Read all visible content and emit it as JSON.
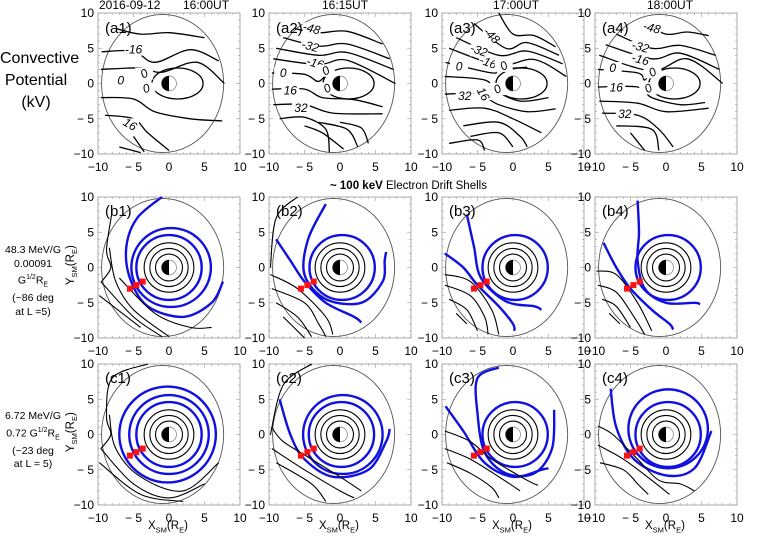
{
  "figure": {
    "date": "2016-09-12",
    "times": [
      "16:00UT",
      "16:15UT",
      "17:00UT",
      "18:00UT"
    ],
    "row_a_label": [
      "Convective",
      "Potential",
      "(kV)"
    ],
    "drift_title_bold": "~ 100 keV",
    "drift_title_rest": "Electron Drift Shells",
    "row_b_label": {
      "line1": "48.3 MeV/G",
      "line2_value": "0.00091 G",
      "line2_sup": "1/2",
      "line2_unit": "R",
      "line2_sub": "E",
      "line3": "(~86 deg",
      "line4": "at L =5)"
    },
    "row_c_label": {
      "line1": "6.72 MeV/G",
      "line2_value": "0.72 G",
      "line2_sup": "1/2",
      "line2_unit": "R",
      "line2_sub": "E",
      "line3": "(~23 deg",
      "line4": "at L = 5)"
    },
    "y_axis_title": {
      "main": "Y",
      "sub": "SM",
      "rest": "(R",
      "sub2": "E",
      "end": ")"
    },
    "x_axis_title": {
      "main": "X",
      "sub": "SM",
      "rest": "(R",
      "sub2": "E",
      "end": ")"
    },
    "colors": {
      "contour": "#000000",
      "boundary": "#555555",
      "drift_shell": "#1010e0",
      "marker": "#ff1010",
      "frame": "#999999"
    }
  },
  "chart_data": [
    {
      "type": "contour",
      "title": "Convective Potential (kV)",
      "panels": [
        {
          "id": "(a1)",
          "time": "16:00UT",
          "contour_labels": [
            "-16",
            "0",
            "0",
            "0",
            "16"
          ]
        },
        {
          "id": "(a2)",
          "time": "16:15UT",
          "contour_labels": [
            "-48",
            "-32",
            "-16",
            "0",
            "0",
            "0",
            "16",
            "32"
          ]
        },
        {
          "id": "(a3)",
          "time": "17:00UT",
          "contour_labels": [
            "-48",
            "-32",
            "-16",
            "0",
            "0",
            "0",
            "16",
            "32"
          ]
        },
        {
          "id": "(a4)",
          "time": "18:00UT",
          "contour_labels": [
            "-48",
            "-32",
            "-16",
            "0",
            "0",
            "0",
            "16",
            "32"
          ]
        }
      ],
      "xlim": [
        -10,
        10
      ],
      "ylim": [
        -10,
        10
      ],
      "xticks": [
        "-10",
        "-5",
        "0",
        "5",
        "10"
      ],
      "yticks": [
        "10",
        "5",
        "0",
        "-5",
        "-10"
      ]
    },
    {
      "type": "contour",
      "title": "~ 100 keV Electron Drift Shells (48.3 MeV/G, 0.00091 G^1/2 RE, ~86 deg at L=5)",
      "panels": [
        {
          "id": "(b1)",
          "time": "16:00UT"
        },
        {
          "id": "(b2)",
          "time": "16:15UT"
        },
        {
          "id": "(b3)",
          "time": "17:00UT"
        },
        {
          "id": "(b4)",
          "time": "18:00UT"
        }
      ],
      "markers_xy": [
        [
          -5.5,
          -3
        ],
        [
          -4.6,
          -2.5
        ],
        [
          -3.7,
          -2
        ]
      ],
      "xlim": [
        -10,
        10
      ],
      "ylim": [
        -10,
        10
      ],
      "xticks": [
        "-10",
        "-5",
        "0",
        "5",
        "10"
      ],
      "yticks": [
        "10",
        "5",
        "0",
        "-5",
        "-10"
      ],
      "ylabel": "YSM(RE)"
    },
    {
      "type": "contour",
      "title": "Drift Shells (6.72 MeV/G, 0.72 G^1/2 RE, ~23 deg at L=5)",
      "panels": [
        {
          "id": "(c1)",
          "time": "16:00UT"
        },
        {
          "id": "(c2)",
          "time": "16:15UT"
        },
        {
          "id": "(c3)",
          "time": "17:00UT"
        },
        {
          "id": "(c4)",
          "time": "18:00UT"
        }
      ],
      "markers_xy": [
        [
          -5.5,
          -3
        ],
        [
          -4.6,
          -2.5
        ],
        [
          -3.7,
          -2
        ]
      ],
      "xlim": [
        -10,
        10
      ],
      "ylim": [
        -10,
        10
      ],
      "xticks": [
        "-10",
        "-5",
        "0",
        "5",
        "10"
      ],
      "yticks": [
        "10",
        "5",
        "0",
        "-5",
        "-10"
      ],
      "xlabel": "XSM(RE)",
      "ylabel": "YSM(RE)"
    }
  ]
}
